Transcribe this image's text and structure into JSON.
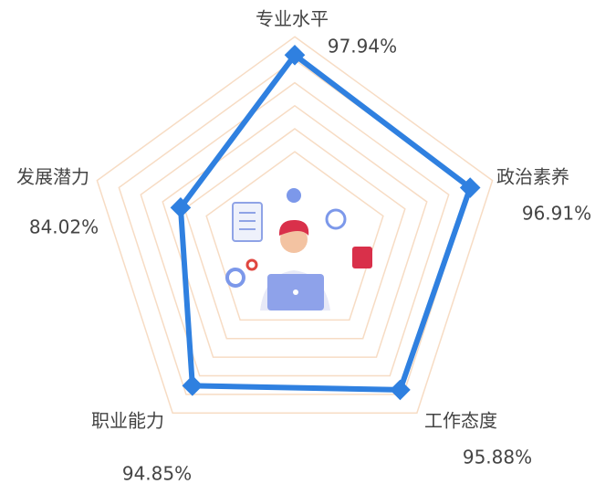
{
  "chart_data": {
    "type": "radar",
    "categories": [
      "专业水平",
      "政治素养",
      "工作态度",
      "职业能力",
      "发展潜力"
    ],
    "series": [
      {
        "color": "#2f80e0",
        "values": [
          97.94,
          96.91,
          95.88,
          94.85,
          84.02
        ],
        "value_labels": [
          "97.94%",
          "96.91%",
          "95.88%",
          "94.85%",
          "84.02%"
        ]
      }
    ],
    "rlim": [
      60,
      100
    ],
    "grid": true,
    "grid_color": "#f7dcc4"
  }
}
